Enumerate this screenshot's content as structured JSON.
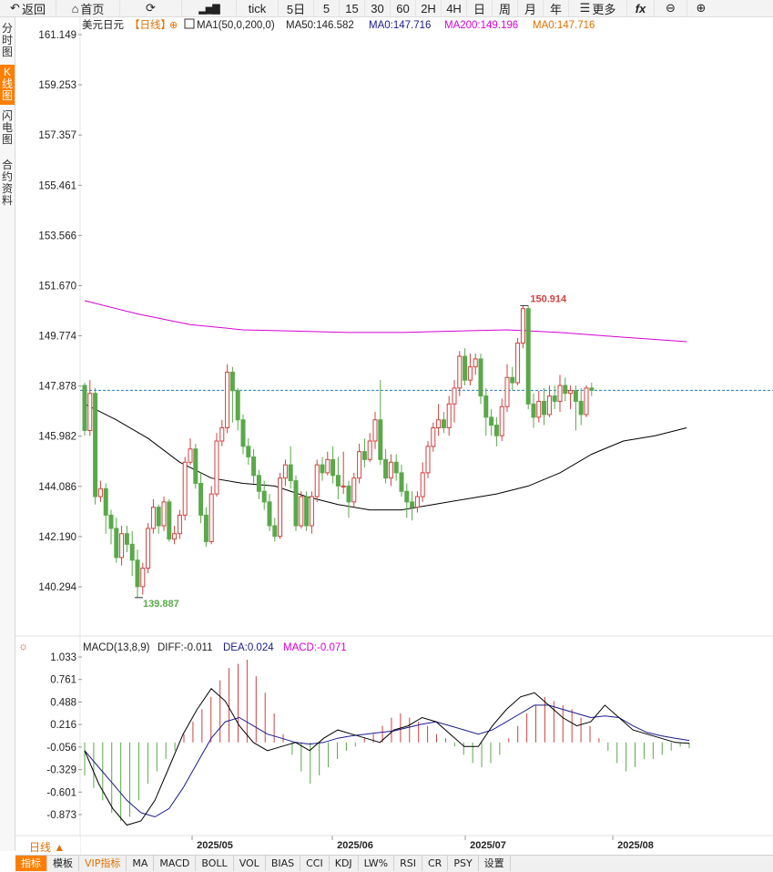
{
  "toolbar": {
    "back": "返回",
    "home": "首页",
    "tick": "tick",
    "p5d": "5日",
    "m5": "5",
    "m15": "15",
    "m30": "30",
    "m60": "60",
    "h2": "2H",
    "h4": "4H",
    "day": "日",
    "week": "周",
    "month": "月",
    "year": "年",
    "more": "更多",
    "fx": "fx"
  },
  "side_tabs": [
    "分时图",
    "K线图",
    "闪电图",
    "合约资料"
  ],
  "header": {
    "symbol": "美元日元",
    "period": "【日线】",
    "ma_name": "MA1(50,0,200,0)",
    "ma50": "MA50:146.582",
    "ma0": "MA0:147.716",
    "ma200": "MA200:149.196",
    "ma0b": "MA0:147.716"
  },
  "macd_header": {
    "name": "MACD(13,8,9)",
    "diff": "DIFF:-0.011",
    "dea": "DEA:0.024",
    "macd": "MACD:-0.071"
  },
  "bottom": {
    "period": "日线 ▲",
    "tabs": [
      "指标",
      "模板",
      "VIP指标",
      "MA",
      "MACD",
      "BOLL",
      "VOL",
      "BIAS",
      "CCI",
      "KDJ",
      "LW%",
      "RSI",
      "CR",
      "PSY",
      "设置"
    ]
  },
  "colors": {
    "up": "#d14040",
    "down": "#5aa84a",
    "ma50": "#000000",
    "ma200": "#d600d6",
    "last_price_line": "#2a7bbf",
    "dea": "#1a1a8c",
    "diff": "#000000"
  },
  "chart_data": {
    "type": "candlestick",
    "price_ticks": [
      161.149,
      159.253,
      157.357,
      155.461,
      153.566,
      151.67,
      149.774,
      147.878,
      145.982,
      144.086,
      142.19,
      140.294
    ],
    "x_labels": [
      "2025/05",
      "2025/06",
      "2025/07",
      "2025/08"
    ],
    "annotations": {
      "high": 150.914,
      "low": 139.887
    },
    "last_price": 147.716,
    "candles": [
      [
        147.9,
        146.2,
        148.0,
        146.0
      ],
      [
        146.2,
        147.6,
        148.1,
        146.0
      ],
      [
        147.6,
        143.7,
        147.8,
        143.4
      ],
      [
        143.7,
        144.0,
        144.3,
        143.5
      ],
      [
        144.0,
        143.0,
        144.2,
        142.3
      ],
      [
        143.0,
        142.5,
        143.2,
        141.9
      ],
      [
        142.5,
        141.4,
        142.9,
        141.2
      ],
      [
        141.4,
        142.3,
        142.6,
        141.1
      ],
      [
        142.3,
        141.9,
        142.6,
        141.6
      ],
      [
        141.9,
        141.3,
        142.4,
        140.7
      ],
      [
        141.3,
        140.3,
        141.7,
        139.9
      ],
      [
        140.3,
        141.0,
        141.2,
        140.0
      ],
      [
        141.0,
        142.5,
        142.7,
        140.8
      ],
      [
        142.5,
        143.3,
        143.6,
        142.3
      ],
      [
        143.3,
        142.6,
        143.4,
        142.3
      ],
      [
        142.6,
        143.5,
        143.7,
        142.4
      ],
      [
        143.5,
        142.1,
        143.6,
        142.0
      ],
      [
        142.1,
        142.3,
        142.6,
        141.9
      ],
      [
        142.3,
        143.0,
        143.2,
        142.1
      ],
      [
        143.0,
        145.0,
        145.2,
        142.8
      ],
      [
        145.0,
        145.5,
        145.9,
        144.9
      ],
      [
        145.5,
        144.2,
        145.7,
        144.0
      ],
      [
        144.2,
        143.0,
        144.6,
        142.7
      ],
      [
        143.0,
        142.0,
        143.3,
        141.8
      ],
      [
        142.0,
        143.8,
        144.1,
        141.9
      ],
      [
        143.8,
        145.8,
        146.1,
        143.7
      ],
      [
        145.8,
        146.3,
        146.6,
        145.6
      ],
      [
        146.3,
        148.4,
        148.7,
        146.1
      ],
      [
        148.4,
        147.7,
        148.6,
        146.5
      ],
      [
        147.7,
        146.6,
        147.8,
        146.2
      ],
      [
        146.6,
        145.6,
        146.8,
        145.3
      ],
      [
        145.6,
        145.2,
        145.9,
        144.9
      ],
      [
        145.2,
        144.5,
        145.5,
        144.2
      ],
      [
        144.5,
        143.9,
        144.7,
        143.6
      ],
      [
        143.9,
        143.5,
        144.3,
        143.2
      ],
      [
        143.5,
        142.6,
        143.8,
        142.4
      ],
      [
        142.6,
        142.2,
        142.9,
        142.0
      ],
      [
        142.2,
        144.4,
        144.6,
        142.1
      ],
      [
        144.4,
        144.9,
        145.1,
        144.1
      ],
      [
        144.9,
        144.3,
        145.6,
        144.0
      ],
      [
        144.3,
        142.6,
        144.5,
        142.4
      ],
      [
        142.6,
        143.7,
        143.9,
        142.5
      ],
      [
        143.7,
        142.6,
        143.9,
        142.4
      ],
      [
        142.6,
        143.7,
        143.9,
        142.3
      ],
      [
        143.7,
        144.9,
        145.1,
        143.5
      ],
      [
        144.9,
        144.6,
        145.2,
        144.3
      ],
      [
        144.6,
        145.1,
        145.4,
        144.5
      ],
      [
        145.1,
        144.5,
        145.6,
        144.2
      ],
      [
        144.5,
        144.1,
        145.2,
        143.6
      ],
      [
        144.1,
        144.1,
        145.4,
        143.8
      ],
      [
        144.1,
        143.5,
        144.3,
        142.9
      ],
      [
        143.5,
        144.4,
        144.6,
        143.3
      ],
      [
        144.4,
        145.4,
        145.7,
        144.2
      ],
      [
        145.4,
        145.1,
        145.9,
        144.8
      ],
      [
        145.1,
        145.8,
        146.1,
        145.0
      ],
      [
        145.8,
        146.6,
        146.9,
        145.5
      ],
      [
        146.6,
        145.1,
        148.1,
        144.9
      ],
      [
        145.1,
        144.4,
        145.5,
        144.2
      ],
      [
        144.4,
        145.0,
        145.3,
        144.1
      ],
      [
        145.0,
        144.6,
        145.3,
        144.3
      ],
      [
        144.6,
        143.9,
        144.9,
        143.7
      ],
      [
        143.9,
        143.5,
        144.2,
        142.9
      ],
      [
        143.5,
        143.3,
        143.9,
        142.8
      ],
      [
        143.3,
        143.7,
        143.9,
        143.1
      ],
      [
        143.7,
        144.6,
        145.0,
        143.5
      ],
      [
        144.6,
        145.6,
        145.8,
        144.4
      ],
      [
        145.6,
        146.3,
        146.5,
        145.4
      ],
      [
        146.3,
        146.6,
        147.2,
        146.0
      ],
      [
        146.6,
        146.3,
        146.9,
        146.1
      ],
      [
        146.3,
        147.2,
        147.5,
        146.0
      ],
      [
        147.2,
        147.8,
        148.1,
        146.5
      ],
      [
        147.8,
        149.0,
        149.2,
        147.5
      ],
      [
        149.0,
        148.1,
        149.3,
        147.9
      ],
      [
        148.1,
        148.6,
        149.1,
        147.9
      ],
      [
        148.6,
        148.9,
        149.1,
        148.3
      ],
      [
        148.9,
        147.5,
        149.1,
        147.2
      ],
      [
        147.5,
        146.7,
        147.8,
        146.0
      ],
      [
        146.7,
        146.4,
        147.0,
        146.0
      ],
      [
        146.4,
        146.0,
        146.7,
        145.6
      ],
      [
        146.0,
        147.1,
        147.4,
        145.8
      ],
      [
        147.1,
        148.2,
        148.7,
        146.9
      ],
      [
        148.2,
        148.0,
        148.6,
        147.7
      ],
      [
        148.0,
        149.5,
        149.7,
        147.9
      ],
      [
        149.5,
        150.8,
        150.914,
        149.3
      ],
      [
        150.8,
        147.2,
        150.9,
        147.0
      ],
      [
        147.2,
        146.7,
        147.6,
        146.3
      ],
      [
        146.7,
        147.3,
        147.7,
        146.5
      ],
      [
        147.3,
        146.8,
        147.8,
        146.4
      ],
      [
        146.8,
        147.5,
        147.9,
        146.7
      ],
      [
        147.5,
        147.3,
        147.9,
        147.0
      ],
      [
        147.3,
        147.9,
        148.3,
        146.9
      ],
      [
        147.9,
        147.6,
        148.2,
        147.3
      ],
      [
        147.6,
        147.7,
        147.9,
        147.0
      ],
      [
        147.7,
        147.3,
        147.9,
        146.2
      ],
      [
        147.3,
        146.8,
        147.8,
        146.4
      ],
      [
        146.8,
        147.8,
        147.9,
        146.7
      ],
      [
        147.8,
        147.716,
        148.0,
        147.5
      ]
    ],
    "ma50": [
      [
        0,
        147.2
      ],
      [
        6,
        146.6
      ],
      [
        12,
        145.9
      ],
      [
        18,
        145.0
      ],
      [
        24,
        144.4
      ],
      [
        30,
        144.2
      ],
      [
        36,
        144.1
      ],
      [
        42,
        143.7
      ],
      [
        48,
        143.4
      ],
      [
        54,
        143.2
      ],
      [
        60,
        143.2
      ],
      [
        66,
        143.4
      ],
      [
        72,
        143.6
      ],
      [
        78,
        143.8
      ],
      [
        84,
        144.1
      ],
      [
        90,
        144.6
      ],
      [
        96,
        145.3
      ],
      [
        102,
        145.8
      ],
      [
        108,
        146.0
      ],
      [
        114,
        146.3
      ]
    ],
    "ma200": [
      [
        0,
        151.1
      ],
      [
        10,
        150.6
      ],
      [
        20,
        150.2
      ],
      [
        30,
        150.0
      ],
      [
        40,
        149.95
      ],
      [
        50,
        149.9
      ],
      [
        60,
        149.9
      ],
      [
        70,
        149.95
      ],
      [
        80,
        150.0
      ],
      [
        90,
        149.9
      ],
      [
        100,
        149.75
      ],
      [
        114,
        149.55
      ]
    ],
    "macd": {
      "ticks": [
        1.033,
        0.761,
        0.488,
        0.216,
        -0.056,
        -0.329,
        -0.601,
        -0.873
      ],
      "hist": [
        -0.4,
        -0.55,
        -0.7,
        -0.85,
        -0.95,
        -0.9,
        -0.7,
        -0.5,
        -0.35,
        -0.2,
        -0.1,
        0.1,
        0.25,
        0.4,
        0.55,
        0.75,
        0.9,
        0.95,
        1.0,
        0.8,
        0.6,
        0.35,
        0.1,
        -0.15,
        -0.35,
        -0.5,
        -0.4,
        -0.3,
        -0.2,
        -0.1,
        -0.05,
        0.05,
        0.1,
        0.2,
        0.3,
        0.35,
        0.3,
        0.25,
        0.2,
        0.1,
        0.05,
        -0.05,
        -0.15,
        -0.25,
        -0.3,
        -0.25,
        -0.15,
        0.05,
        0.2,
        0.35,
        0.45,
        0.55,
        0.5,
        0.45,
        0.4,
        0.3,
        0.2,
        0.05,
        -0.1,
        -0.25,
        -0.35,
        -0.3,
        -0.2,
        -0.2,
        -0.15,
        -0.1,
        -0.05,
        -0.07
      ],
      "diff": [
        -0.1,
        -0.5,
        -0.8,
        -1.0,
        -0.95,
        -0.7,
        -0.3,
        0.1,
        0.4,
        0.65,
        0.5,
        0.2,
        0.0,
        -0.1,
        -0.05,
        0.0,
        -0.1,
        0.05,
        0.15,
        0.1,
        0.05,
        0.0,
        0.15,
        0.2,
        0.3,
        0.25,
        0.1,
        -0.05,
        -0.05,
        0.2,
        0.4,
        0.55,
        0.6,
        0.45,
        0.3,
        0.2,
        0.25,
        0.45,
        0.3,
        0.15,
        0.1,
        0.05,
        0.0,
        -0.011
      ],
      "dea": [
        -0.1,
        -0.3,
        -0.5,
        -0.7,
        -0.85,
        -0.9,
        -0.8,
        -0.55,
        -0.25,
        0.05,
        0.25,
        0.3,
        0.2,
        0.1,
        0.05,
        0.0,
        -0.02,
        0.0,
        0.05,
        0.08,
        0.1,
        0.12,
        0.14,
        0.18,
        0.22,
        0.25,
        0.2,
        0.15,
        0.1,
        0.15,
        0.25,
        0.35,
        0.45,
        0.45,
        0.4,
        0.35,
        0.3,
        0.32,
        0.3,
        0.2,
        0.12,
        0.08,
        0.05,
        0.024
      ]
    }
  }
}
